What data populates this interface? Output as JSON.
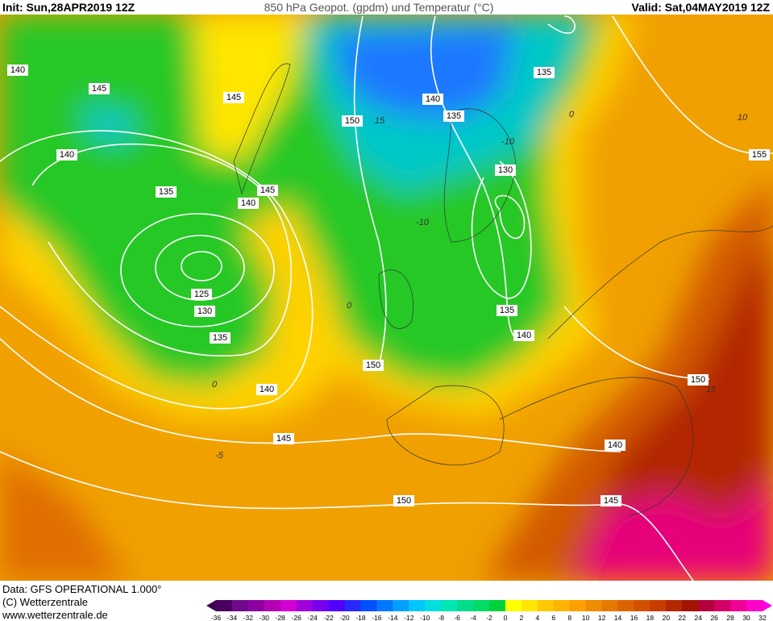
{
  "header": {
    "init": "Init: Sun,28APR2019 12Z",
    "title": "850 hPa Geopot. (gpdm) und Temperatur (°C)",
    "valid": "Valid: Sat,04MAY2019 12Z"
  },
  "contours": {
    "geopotential_labels": [
      "140",
      "145",
      "145",
      "140",
      "135",
      "140",
      "145",
      "150",
      "140",
      "135",
      "135",
      "130",
      "125",
      "130",
      "135",
      "150",
      "140",
      "135",
      "140",
      "145",
      "150",
      "140",
      "145",
      "150",
      "155"
    ],
    "isotherm_labels": [
      "15",
      "-10",
      "-10",
      "0",
      "0",
      "10",
      "15",
      "-5",
      "0"
    ]
  },
  "footer": {
    "data": "Data: GFS OPERATIONAL 1.000°",
    "copyright": "(C) Wetterzentrale",
    "url": "www.wetterzentrale.de"
  },
  "colorbar": {
    "labels": [
      -36,
      -34,
      -32,
      -30,
      -28,
      -26,
      -24,
      -22,
      -20,
      -18,
      -16,
      -14,
      -12,
      -10,
      -8,
      -6,
      -4,
      -2,
      0,
      2,
      4,
      6,
      8,
      10,
      12,
      14,
      16,
      18,
      20,
      22,
      24,
      26,
      28,
      30,
      32
    ],
    "colors": [
      "#4b0060",
      "#6e0a8c",
      "#8c00a0",
      "#b400b4",
      "#d200d2",
      "#a000dc",
      "#7800f0",
      "#5000ff",
      "#2828ff",
      "#0050ff",
      "#0078ff",
      "#00a0ff",
      "#00c8ff",
      "#00e0e0",
      "#00e6b4",
      "#00dc8c",
      "#00dc64",
      "#00d23c",
      "#ffff00",
      "#ffe600",
      "#ffc800",
      "#ffb400",
      "#ffa000",
      "#f08c00",
      "#e67800",
      "#dc6400",
      "#d25000",
      "#c83c00",
      "#b42800",
      "#a01400",
      "#b4003c",
      "#d20064",
      "#f00096",
      "#ff00c8"
    ],
    "under_color": "#3c0050",
    "over_color": "#ff00e6"
  }
}
